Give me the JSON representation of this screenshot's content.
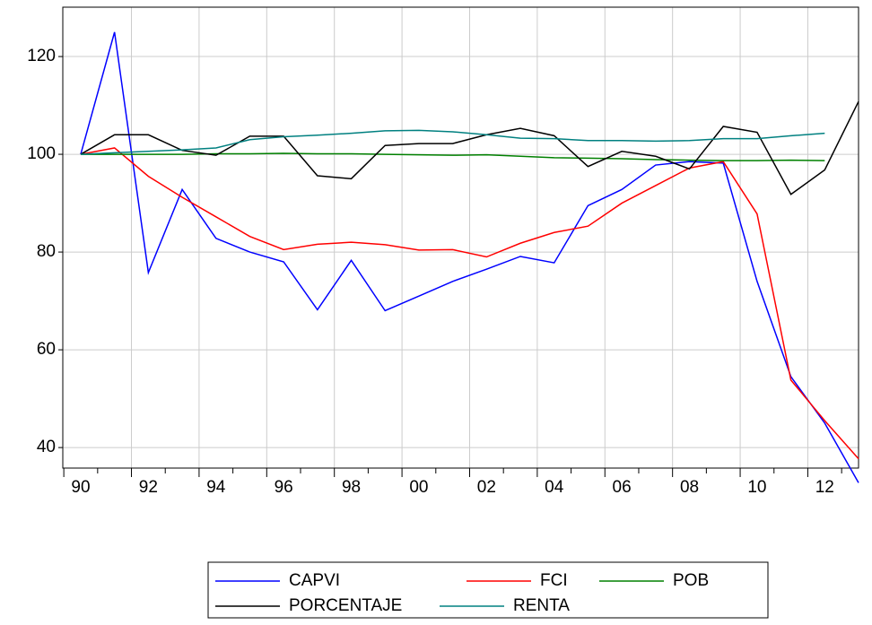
{
  "chart_data": {
    "type": "line",
    "x": [
      1990,
      1991,
      1992,
      1993,
      1994,
      1995,
      1996,
      1997,
      1998,
      1999,
      2000,
      2001,
      2002,
      2003,
      2004,
      2005,
      2006,
      2007,
      2008,
      2009,
      2010,
      2011,
      2012,
      2013
    ],
    "series": [
      {
        "name": "CAPVI",
        "color": "#0000ff",
        "values": [
          100,
          125,
          75.8,
          92.8,
          82.8,
          80,
          78,
          68.2,
          78.3,
          68,
          71,
          74,
          76.5,
          79.1,
          77.8,
          89.5,
          92.8,
          97.8,
          98.5,
          98.2,
          74,
          54.5,
          45,
          32.8
        ]
      },
      {
        "name": "FCI",
        "color": "#ff0000",
        "values": [
          100,
          101.3,
          95.5,
          91.2,
          87.2,
          83.2,
          80.5,
          81.6,
          82,
          81.5,
          80.4,
          80.5,
          79,
          81.8,
          84,
          85.3,
          90,
          93.6,
          97.2,
          98.5,
          87.8,
          53.8,
          45.5,
          37.7
        ]
      },
      {
        "name": "POB",
        "color": "#008000",
        "values": [
          100,
          100,
          100,
          100,
          100.1,
          100.1,
          100.2,
          100.1,
          100.1,
          100,
          99.9,
          99.8,
          99.9,
          99.6,
          99.3,
          99.2,
          99.1,
          98.9,
          98.8,
          98.7,
          98.7,
          98.8,
          98.7,
          null
        ]
      },
      {
        "name": "PORCENTAJE",
        "color": "#000000",
        "values": [
          100,
          104,
          104,
          100.8,
          99.8,
          103.7,
          103.7,
          95.6,
          95,
          101.8,
          102.2,
          102.2,
          104,
          105.3,
          103.8,
          97.5,
          100.6,
          99.6,
          97,
          105.7,
          104.5,
          91.8,
          96.8,
          110.8
        ]
      },
      {
        "name": "RENTA",
        "color": "#008080",
        "values": [
          100,
          100.3,
          100.6,
          100.9,
          101.3,
          103,
          103.6,
          103.9,
          104.3,
          104.8,
          104.9,
          104.6,
          104,
          103.3,
          103.2,
          102.8,
          102.8,
          102.7,
          102.8,
          103.2,
          103.2,
          103.8,
          104.3,
          null
        ]
      }
    ],
    "xlim": [
      1989.47,
      2013.0
    ],
    "xticks": [
      {
        "value": 1990,
        "label": "90"
      },
      {
        "value": 1992,
        "label": "92"
      },
      {
        "value": 1994,
        "label": "94"
      },
      {
        "value": 1996,
        "label": "96"
      },
      {
        "value": 1998,
        "label": "98"
      },
      {
        "value": 2000,
        "label": "00"
      },
      {
        "value": 2002,
        "label": "02"
      },
      {
        "value": 2004,
        "label": "04"
      },
      {
        "value": 2006,
        "label": "06"
      },
      {
        "value": 2008,
        "label": "08"
      },
      {
        "value": 2010,
        "label": "10"
      },
      {
        "value": 2012,
        "label": "12"
      }
    ],
    "ylim": [
      35.8,
      130.1
    ],
    "yticks": [
      40,
      60,
      80,
      100,
      120
    ],
    "grid": true
  }
}
